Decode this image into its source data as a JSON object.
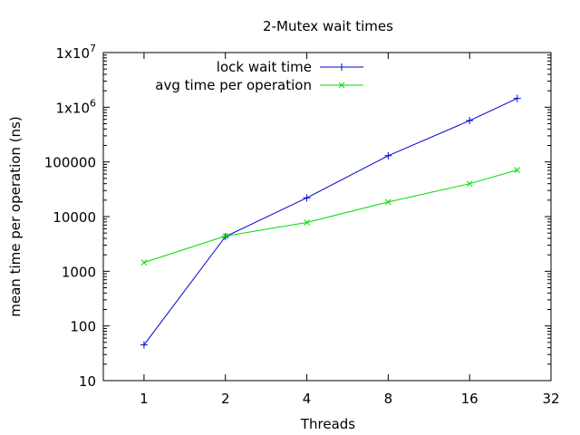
{
  "chart_data": {
    "type": "line",
    "title": "2-Mutex wait times",
    "xlabel": "Threads",
    "ylabel": "mean time per operation (ns)",
    "x_scale": "log2",
    "y_scale": "log10",
    "xlim": [
      0.7071,
      32
    ],
    "ylim": [
      10,
      10000000
    ],
    "x_ticks": [
      {
        "value": 1,
        "label": "1"
      },
      {
        "value": 2,
        "label": "2"
      },
      {
        "value": 4,
        "label": "4"
      },
      {
        "value": 8,
        "label": "8"
      },
      {
        "value": 16,
        "label": "16"
      },
      {
        "value": 32,
        "label": "32"
      }
    ],
    "y_ticks": [
      {
        "value": 10,
        "label": "10"
      },
      {
        "value": 100,
        "label": "100"
      },
      {
        "value": 1000,
        "label": "1000"
      },
      {
        "value": 10000,
        "label": "10000"
      },
      {
        "value": 100000,
        "label": "100000"
      },
      {
        "value": 1000000,
        "label": "1x10",
        "exp": "6"
      },
      {
        "value": 10000000,
        "label": "1x10",
        "exp": "7"
      }
    ],
    "grid": false,
    "legend_position": "top-right",
    "series": [
      {
        "name": "lock wait time",
        "color": "#0000cc",
        "marker": "plus",
        "x": [
          1,
          2,
          4,
          8,
          16,
          24
        ],
        "y": [
          45,
          4300,
          22000,
          130000,
          570000,
          1450000
        ]
      },
      {
        "name": "avg time per operation",
        "color": "#00dd00",
        "marker": "cross",
        "x": [
          1,
          2,
          4,
          8,
          16,
          24
        ],
        "y": [
          1450,
          4400,
          7800,
          18500,
          40000,
          71000
        ]
      }
    ]
  }
}
